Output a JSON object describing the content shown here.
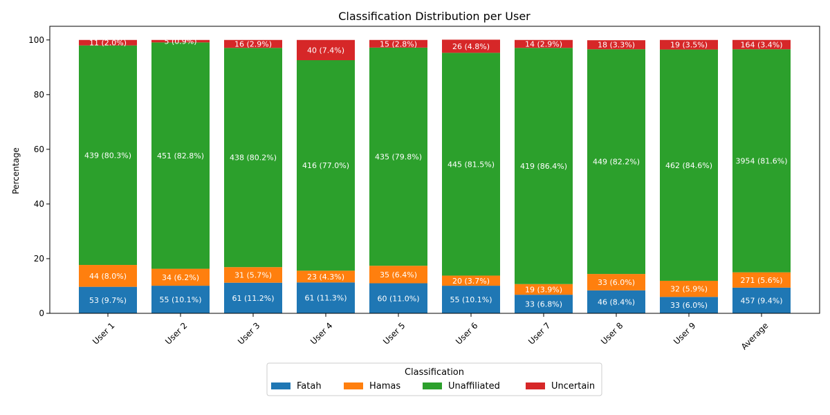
{
  "chart_data": {
    "type": "bar",
    "stacked": true,
    "title": "Classification Distribution per User",
    "xlabel": "",
    "ylabel": "Percentage",
    "ylim": [
      0,
      105
    ],
    "yticks": [
      0,
      20,
      40,
      60,
      80,
      100
    ],
    "categories": [
      "User 1",
      "User 2",
      "User 3",
      "User 4",
      "User 5",
      "User 6",
      "User 7",
      "User 8",
      "User 9",
      "Average"
    ],
    "legend": {
      "title": "Classification",
      "placement": "bottom-center"
    },
    "series": [
      {
        "name": "Fatah",
        "color": "#1f77b4",
        "values": [
          9.7,
          10.1,
          11.2,
          11.3,
          11.0,
          10.1,
          6.8,
          8.4,
          6.0,
          9.4
        ],
        "labels": [
          "53 (9.7%)",
          "55 (10.1%)",
          "61 (11.2%)",
          "61 (11.3%)",
          "60 (11.0%)",
          "55 (10.1%)",
          "33 (6.8%)",
          "46 (8.4%)",
          "33 (6.0%)",
          "457 (9.4%)"
        ]
      },
      {
        "name": "Hamas",
        "color": "#ff7f0e",
        "values": [
          8.0,
          6.2,
          5.7,
          4.3,
          6.4,
          3.7,
          3.9,
          6.0,
          5.9,
          5.6
        ],
        "labels": [
          "44 (8.0%)",
          "34 (6.2%)",
          "31 (5.7%)",
          "23 (4.3%)",
          "35 (6.4%)",
          "20 (3.7%)",
          "19 (3.9%)",
          "33 (6.0%)",
          "32 (5.9%)",
          "271 (5.6%)"
        ]
      },
      {
        "name": "Unaffiliated",
        "color": "#2ca02c",
        "values": [
          80.3,
          82.8,
          80.2,
          77.0,
          79.8,
          81.5,
          86.4,
          82.2,
          84.6,
          81.6
        ],
        "labels": [
          "439 (80.3%)",
          "451 (82.8%)",
          "438 (80.2%)",
          "416 (77.0%)",
          "435 (79.8%)",
          "445 (81.5%)",
          "419 (86.4%)",
          "449 (82.2%)",
          "462 (84.6%)",
          "3954 (81.6%)"
        ]
      },
      {
        "name": "Uncertain",
        "color": "#d62728",
        "values": [
          2.0,
          0.9,
          2.9,
          7.4,
          2.8,
          4.8,
          2.9,
          3.3,
          3.5,
          3.4
        ],
        "labels": [
          "11 (2.0%)",
          "5 (0.9%)",
          "16 (2.9%)",
          "40 (7.4%)",
          "15 (2.8%)",
          "26 (4.8%)",
          "14 (2.9%)",
          "18 (3.3%)",
          "19 (3.5%)",
          "164 (3.4%)"
        ]
      }
    ]
  }
}
